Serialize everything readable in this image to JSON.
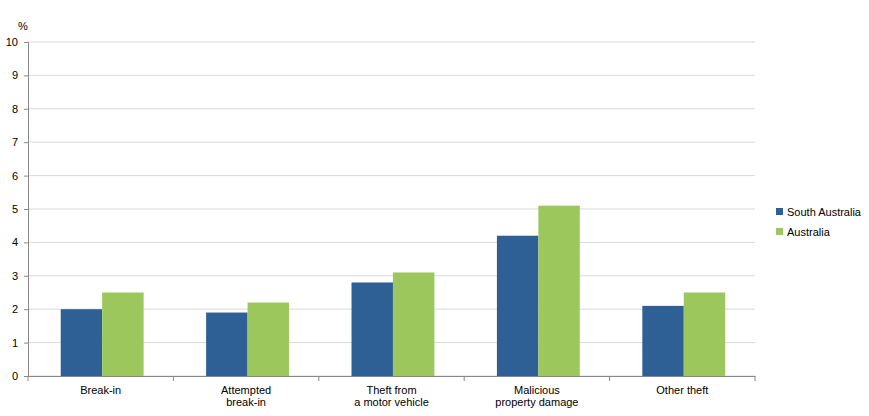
{
  "chart_data": {
    "type": "bar",
    "y_label": "%",
    "categories": [
      "Break-in",
      "Attempted\nbreak-in",
      "Theft from\na motor vehicle",
      "Malicious\nproperty damage",
      "Other theft"
    ],
    "series": [
      {
        "name": "South Australia",
        "color": "#2e5f95",
        "values": [
          2.0,
          1.9,
          2.8,
          4.2,
          2.1
        ]
      },
      {
        "name": "Australia",
        "color": "#9bc75c",
        "values": [
          2.5,
          2.2,
          3.1,
          5.1,
          2.5
        ]
      }
    ],
    "ylim": [
      0,
      10
    ],
    "yticks": [
      0,
      1,
      2,
      3,
      4,
      5,
      6,
      7,
      8,
      9,
      10
    ],
    "grid": true,
    "legend": "right"
  }
}
